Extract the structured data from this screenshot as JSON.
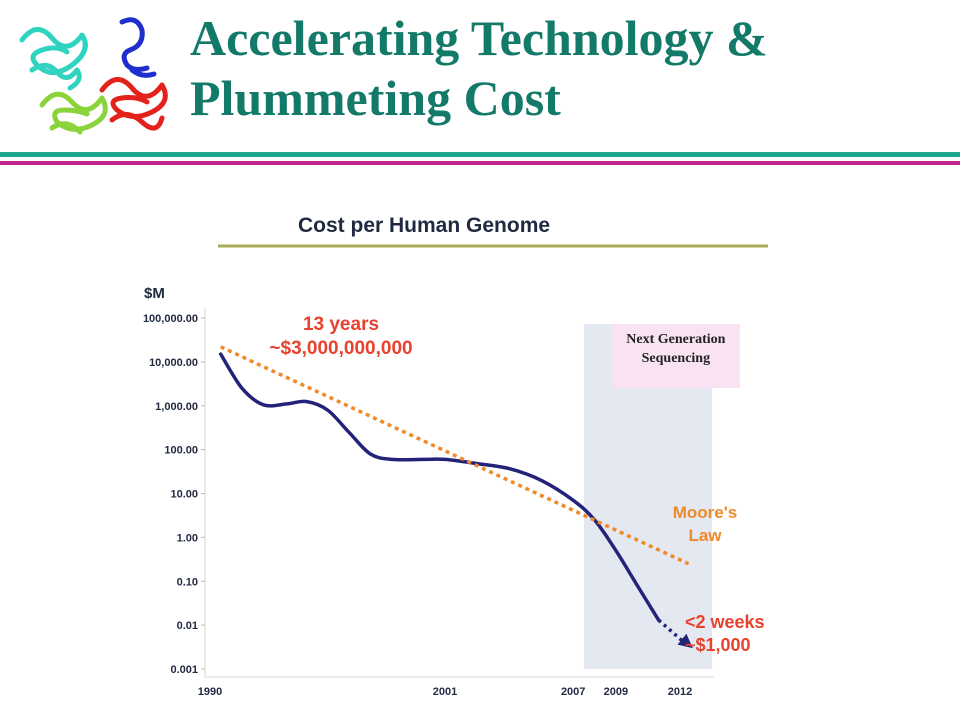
{
  "slide": {
    "title_line1": "Accelerating Technology &",
    "title_line2": "Plummeting Cost",
    "title_color": "#137a6a",
    "rule_colors": [
      "#1aa58c",
      "#c0248f"
    ]
  },
  "logo": {
    "icon": "protein-structure-icon",
    "colors": [
      "#2fd3c0",
      "#8ad33a",
      "#e3221c",
      "#1f2fcf"
    ]
  },
  "chart_data": {
    "type": "line",
    "title": "Cost per Human Genome",
    "ylabel": "$M",
    "y_scale": "log",
    "ylim": [
      0.001,
      100000
    ],
    "y_ticks": [
      "100,000.00",
      "10,000.00",
      "1,000.00",
      "100.00",
      "10.00",
      "1.00",
      "0.10",
      "0.01",
      "0.001"
    ],
    "x_ticks": [
      "1990",
      "2001",
      "2007",
      "2009",
      "2012"
    ],
    "x_tick_values": [
      1990,
      2001,
      2007,
      2009,
      2012
    ],
    "xlim": [
      1990,
      2012
    ],
    "grid": false,
    "series": [
      {
        "name": "",
        "color": "#24237a",
        "style": "solid",
        "points": [
          [
            1990.5,
            15000
          ],
          [
            1991.5,
            2500
          ],
          [
            1992.5,
            1050
          ],
          [
            1993.6,
            1100
          ],
          [
            1994.5,
            1250
          ],
          [
            1995.5,
            800
          ],
          [
            1996.5,
            250
          ],
          [
            1997.5,
            80
          ],
          [
            1998.5,
            60
          ],
          [
            2000,
            60
          ],
          [
            2001,
            60
          ],
          [
            2002.5,
            48
          ],
          [
            2004,
            37
          ],
          [
            2005.5,
            20
          ],
          [
            2007,
            7
          ],
          [
            2008,
            2.5
          ],
          [
            2009,
            0.5
          ],
          [
            2010,
            0.08
          ],
          [
            2011,
            0.013
          ]
        ]
      },
      {
        "name": "",
        "color": "#24237a",
        "style": "dotted-arrow",
        "points": [
          [
            2011,
            0.013
          ],
          [
            2012.6,
            0.003
          ]
        ]
      },
      {
        "name": "Moore's Law",
        "color": "#ef8a2a",
        "style": "dashed",
        "points": [
          [
            1990.5,
            22000
          ],
          [
            2012.4,
            0.25
          ]
        ]
      }
    ],
    "highlight_region": {
      "x_range": [
        2007.5,
        2013.5
      ],
      "color": "#e4e9f1",
      "label": "Next Generation Sequencing",
      "label_line1": "Next Generation",
      "label_line2": "Sequencing",
      "label_color": "#f9e3f3"
    },
    "annotations": {
      "start_line1": "13 years",
      "start_line2": "~$3,000,000,000",
      "moore_line1": "Moore's",
      "moore_line2": "Law",
      "end_line1": "<2 weeks",
      "end_line2": "~$1,000",
      "red_color": "#e8412e",
      "orange_color": "#ef8a2a"
    }
  }
}
